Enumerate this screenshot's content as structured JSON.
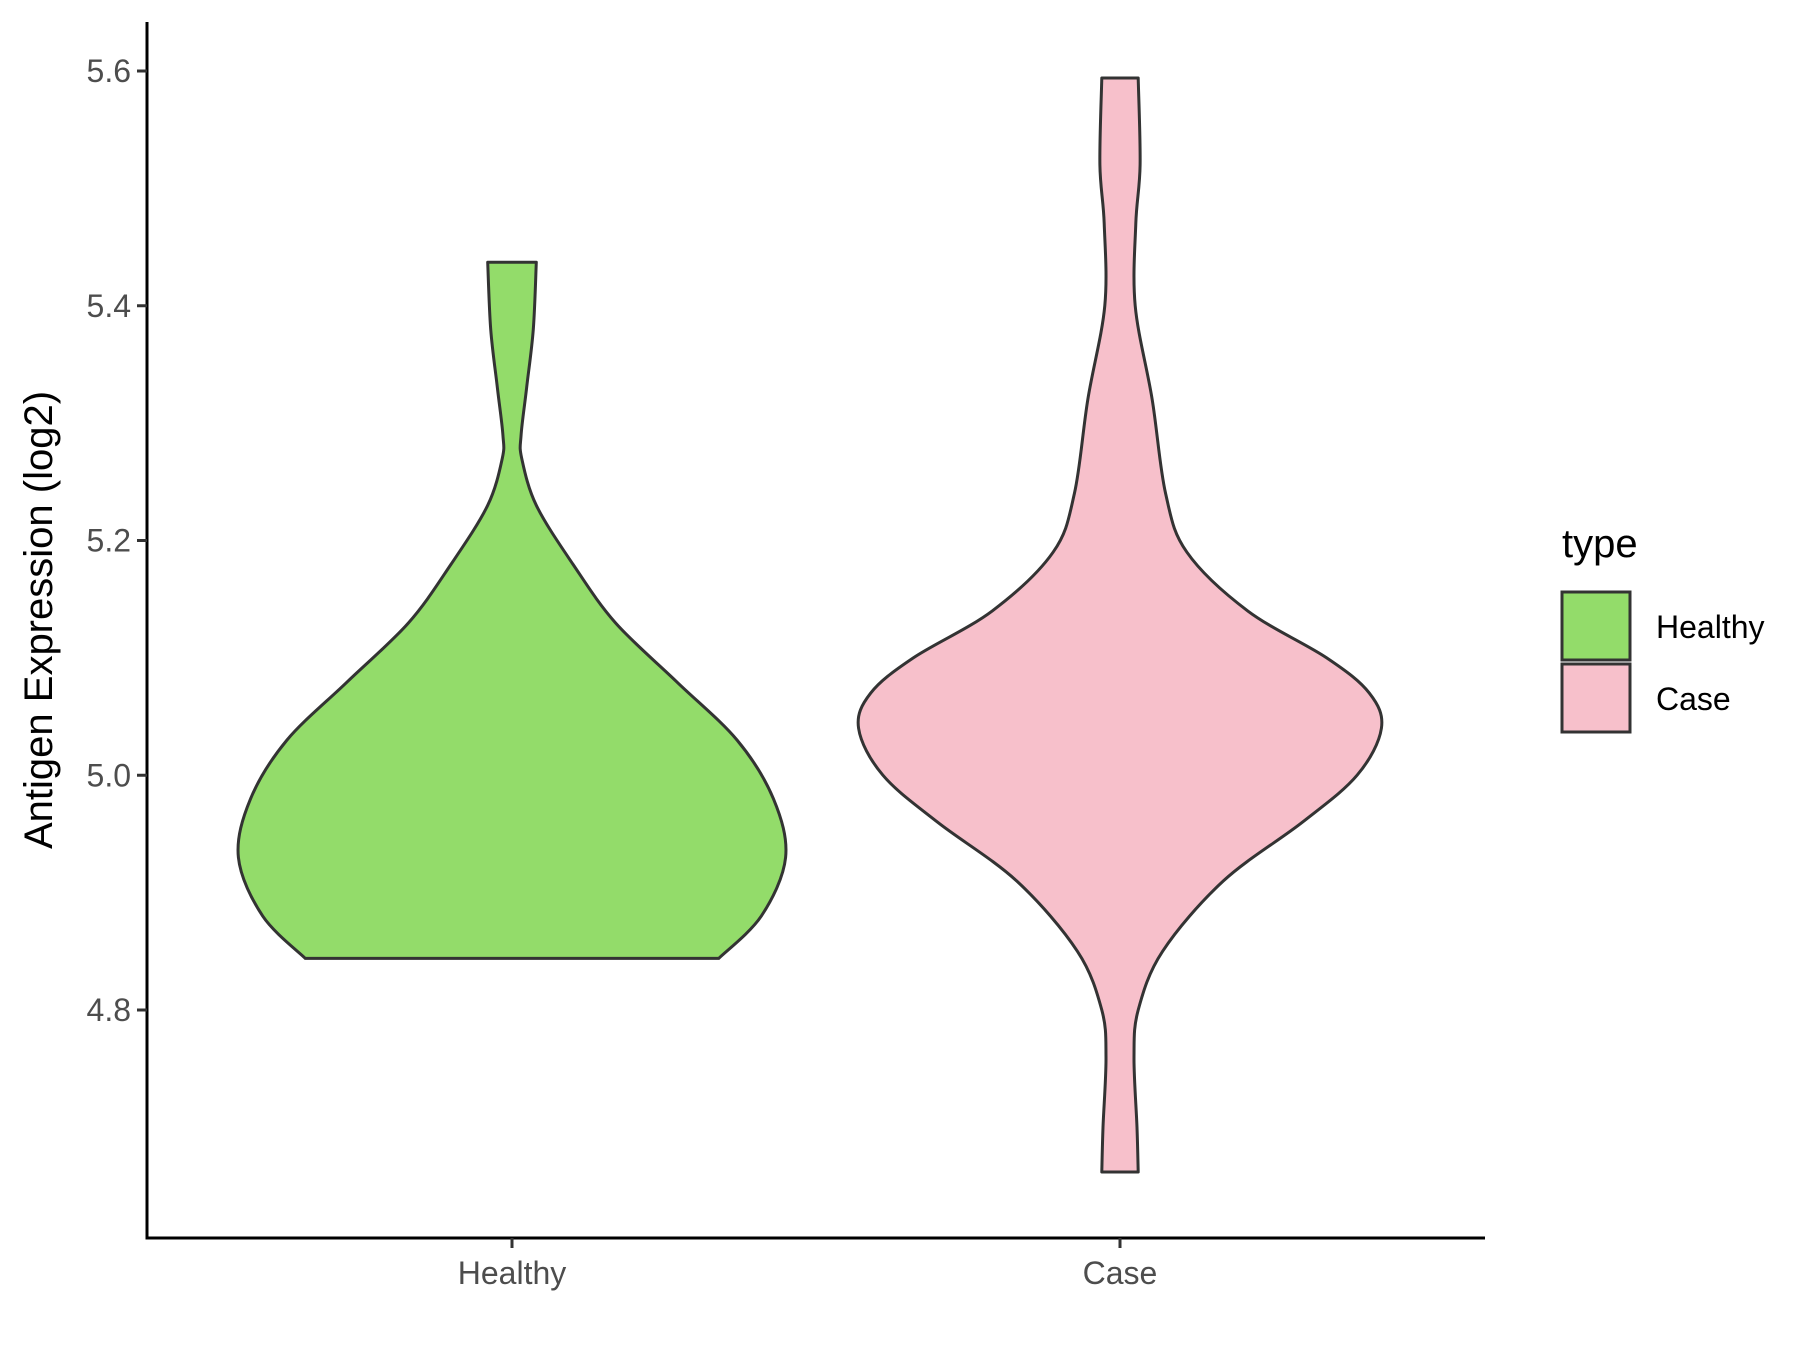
{
  "chart_data": {
    "type": "violin",
    "title": "",
    "xlabel": "",
    "ylabel": "Antigen Expression (log2)",
    "ylim": [
      4.62,
      5.64
    ],
    "yticks": [
      4.8,
      5.0,
      5.2,
      5.4,
      5.6
    ],
    "ytick_labels": [
      "4.8",
      "5.0",
      "5.2",
      "5.4",
      "5.6"
    ],
    "categories": [
      "Healthy",
      "Case"
    ],
    "grid": false,
    "legend": {
      "title": "type",
      "placement": "right",
      "entries": [
        {
          "label": "Healthy",
          "color": "#93DC6A"
        },
        {
          "label": "Case",
          "color": "#F7C0CB"
        }
      ]
    },
    "series": [
      {
        "name": "Healthy",
        "color": "#93DC6A",
        "y_min": 4.844,
        "y_max": 5.437,
        "max_half_width": 0.45,
        "profile": [
          [
            4.844,
            0.34
          ],
          [
            4.88,
            0.41
          ],
          [
            4.93,
            0.45
          ],
          [
            4.98,
            0.43
          ],
          [
            5.03,
            0.37
          ],
          [
            5.08,
            0.27
          ],
          [
            5.13,
            0.17
          ],
          [
            5.18,
            0.1
          ],
          [
            5.23,
            0.04
          ],
          [
            5.27,
            0.016
          ],
          [
            5.29,
            0.015
          ],
          [
            5.33,
            0.024
          ],
          [
            5.38,
            0.035
          ],
          [
            5.437,
            0.04
          ]
        ]
      },
      {
        "name": "Case",
        "color": "#F7C0CB",
        "y_min": 4.662,
        "y_max": 5.594,
        "max_half_width": 0.43,
        "profile": [
          [
            4.662,
            0.03
          ],
          [
            4.7,
            0.028
          ],
          [
            4.76,
            0.023
          ],
          [
            4.8,
            0.03
          ],
          [
            4.85,
            0.07
          ],
          [
            4.91,
            0.17
          ],
          [
            4.96,
            0.3
          ],
          [
            5.0,
            0.39
          ],
          [
            5.04,
            0.43
          ],
          [
            5.07,
            0.41
          ],
          [
            5.1,
            0.34
          ],
          [
            5.14,
            0.21
          ],
          [
            5.19,
            0.11
          ],
          [
            5.24,
            0.075
          ],
          [
            5.32,
            0.053
          ],
          [
            5.4,
            0.025
          ],
          [
            5.47,
            0.026
          ],
          [
            5.52,
            0.033
          ],
          [
            5.594,
            0.03
          ]
        ]
      }
    ]
  }
}
